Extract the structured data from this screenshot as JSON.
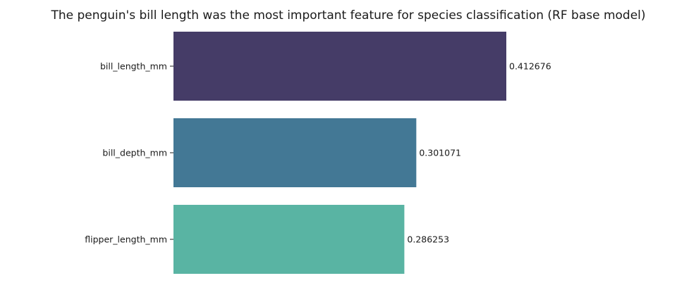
{
  "chart_data": {
    "type": "bar",
    "orientation": "horizontal",
    "title": "The penguin's bill length was the most important feature for species classification (RF base model)",
    "xlabel": "",
    "ylabel": "",
    "categories": [
      "bill_length_mm",
      "bill_depth_mm",
      "flipper_length_mm"
    ],
    "values": [
      0.412676,
      0.301071,
      0.286253
    ],
    "data_labels": [
      "0.412676",
      "0.301071",
      "0.286253"
    ],
    "colors": [
      "#453c67",
      "#437895",
      "#59b4a3"
    ],
    "xlim": [
      0,
      0.412676
    ],
    "grid": false,
    "legend": "none"
  }
}
